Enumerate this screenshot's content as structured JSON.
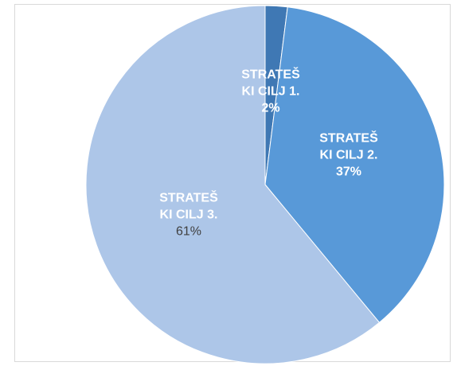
{
  "chart_data": {
    "type": "pie",
    "categories": [
      "STRATEŠKI CILJ 1.",
      "STRATEŠKI CILJ 2.",
      "STRATEŠKI CILJ 3."
    ],
    "values": [
      2,
      37,
      61
    ],
    "value_labels": [
      "2%",
      "37%",
      "61%"
    ],
    "colors": [
      "#3f78b4",
      "#5899d8",
      "#adc6e8"
    ]
  }
}
